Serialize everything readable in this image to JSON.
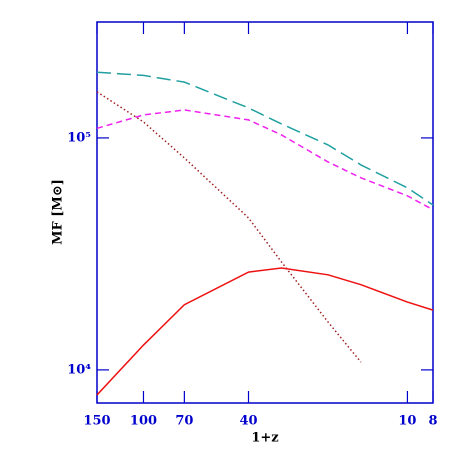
{
  "chart_data": {
    "type": "line",
    "x_label": "1+z",
    "y_label": "MF [M⊙]",
    "x": [
      150,
      100,
      70,
      40,
      30,
      20,
      15,
      10,
      8
    ],
    "xlim": [
      150,
      8
    ],
    "ylim": [
      7200,
      316000
    ],
    "xlog": true,
    "ylog": true,
    "xticks": [
      150,
      100,
      70,
      40,
      10,
      8
    ],
    "yticks": [
      {
        "value": 10000,
        "label": "10⁴"
      },
      {
        "value": 100000,
        "label": "10⁵"
      }
    ],
    "series": [
      {
        "color": "#20a0a0",
        "dash": "14,6",
        "values": [
          192000,
          186000,
          174000,
          134700,
          114900,
          93300,
          76500,
          60900,
          51400
        ]
      },
      {
        "color": "#ee22ee",
        "dash": "6,4",
        "values": [
          110000,
          125600,
          132000,
          119600,
          103000,
          78800,
          67300,
          56300,
          49000
        ]
      },
      {
        "color": "#a02020",
        "dash": "1.5,2.5",
        "values": [
          158000,
          117200,
          82000,
          45200,
          29200,
          16100,
          10800,
          null,
          null
        ]
      },
      {
        "color": "#ee1111",
        "dash": "",
        "values": [
          7800,
          12800,
          19100,
          26400,
          27500,
          25700,
          23300,
          19600,
          18100
        ]
      }
    ]
  }
}
